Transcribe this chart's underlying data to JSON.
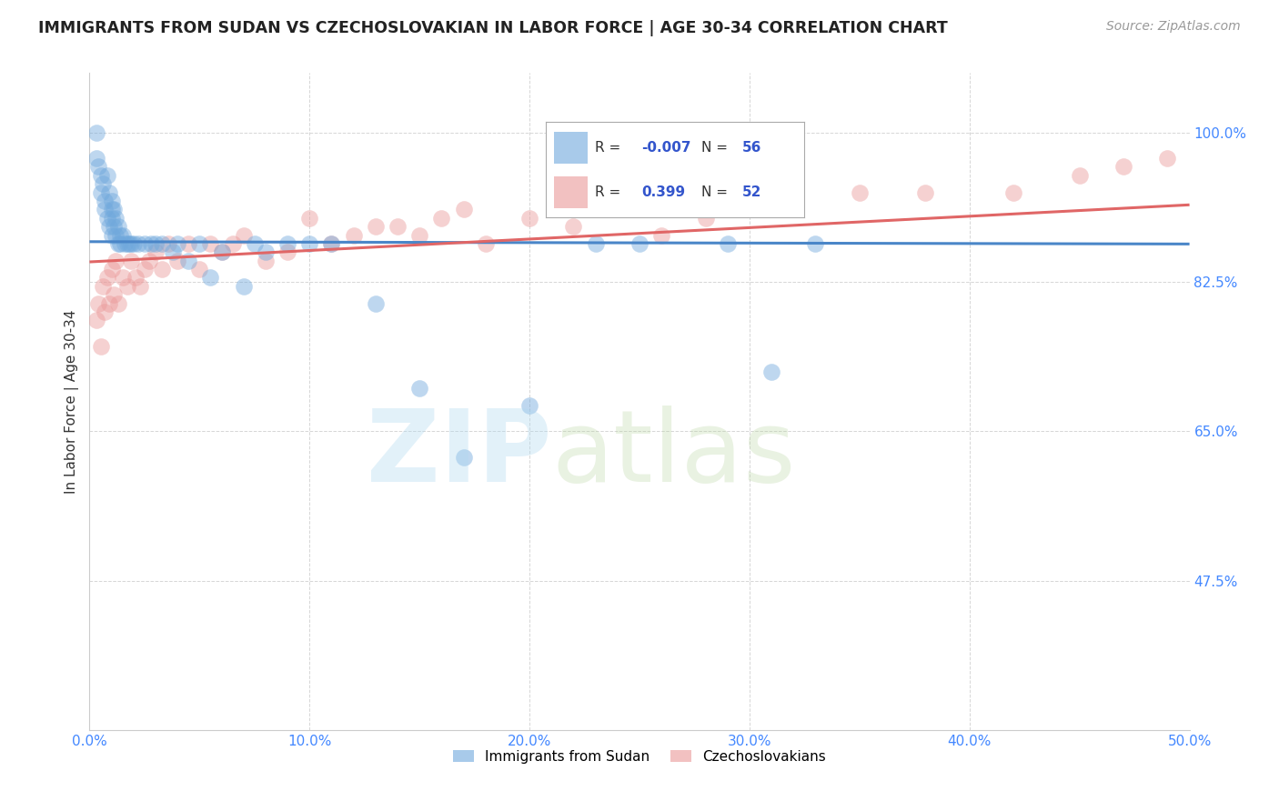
{
  "title": "IMMIGRANTS FROM SUDAN VS CZECHOSLOVAKIAN IN LABOR FORCE | AGE 30-34 CORRELATION CHART",
  "source": "Source: ZipAtlas.com",
  "ylabel": "In Labor Force | Age 30-34",
  "xlim": [
    0.0,
    0.5
  ],
  "ylim": [
    0.3,
    1.07
  ],
  "xticks": [
    0.0,
    0.1,
    0.2,
    0.3,
    0.4,
    0.5
  ],
  "xticklabels": [
    "0.0%",
    "10.0%",
    "20.0%",
    "30.0%",
    "40.0%",
    "50.0%"
  ],
  "yticks": [
    0.475,
    0.65,
    0.825,
    1.0
  ],
  "yticklabels": [
    "47.5%",
    "65.0%",
    "82.5%",
    "100.0%"
  ],
  "grid_color": "#cccccc",
  "legend_r_sudan": "-0.007",
  "legend_n_sudan": "56",
  "legend_r_czech": "0.399",
  "legend_n_czech": "52",
  "sudan_color": "#6fa8dc",
  "czech_color": "#ea9999",
  "sudan_line_color": "#4a86c8",
  "czech_line_color": "#e06666",
  "sudan_x": [
    0.003,
    0.003,
    0.004,
    0.005,
    0.005,
    0.006,
    0.007,
    0.007,
    0.008,
    0.008,
    0.009,
    0.009,
    0.01,
    0.01,
    0.01,
    0.01,
    0.011,
    0.011,
    0.012,
    0.012,
    0.013,
    0.013,
    0.014,
    0.014,
    0.015,
    0.016,
    0.017,
    0.018,
    0.019,
    0.02,
    0.022,
    0.025,
    0.028,
    0.03,
    0.033,
    0.038,
    0.04,
    0.045,
    0.05,
    0.055,
    0.06,
    0.07,
    0.075,
    0.08,
    0.09,
    0.1,
    0.11,
    0.13,
    0.15,
    0.17,
    0.2,
    0.23,
    0.25,
    0.29,
    0.31,
    0.33
  ],
  "sudan_y": [
    1.0,
    0.97,
    0.96,
    0.95,
    0.93,
    0.94,
    0.92,
    0.91,
    0.95,
    0.9,
    0.93,
    0.89,
    0.92,
    0.91,
    0.9,
    0.88,
    0.91,
    0.89,
    0.9,
    0.88,
    0.89,
    0.87,
    0.88,
    0.87,
    0.88,
    0.87,
    0.87,
    0.87,
    0.87,
    0.87,
    0.87,
    0.87,
    0.87,
    0.87,
    0.87,
    0.86,
    0.87,
    0.85,
    0.87,
    0.83,
    0.86,
    0.82,
    0.87,
    0.86,
    0.87,
    0.87,
    0.87,
    0.8,
    0.7,
    0.62,
    0.68,
    0.87,
    0.87,
    0.87,
    0.72,
    0.87
  ],
  "czech_x": [
    0.003,
    0.004,
    0.005,
    0.006,
    0.007,
    0.008,
    0.009,
    0.01,
    0.011,
    0.012,
    0.013,
    0.015,
    0.017,
    0.019,
    0.021,
    0.023,
    0.025,
    0.027,
    0.03,
    0.033,
    0.036,
    0.04,
    0.045,
    0.05,
    0.055,
    0.06,
    0.065,
    0.07,
    0.08,
    0.09,
    0.1,
    0.11,
    0.12,
    0.13,
    0.14,
    0.15,
    0.16,
    0.17,
    0.18,
    0.2,
    0.22,
    0.24,
    0.26,
    0.28,
    0.3,
    0.32,
    0.35,
    0.38,
    0.42,
    0.45,
    0.47,
    0.49
  ],
  "czech_y": [
    0.78,
    0.8,
    0.75,
    0.82,
    0.79,
    0.83,
    0.8,
    0.84,
    0.81,
    0.85,
    0.8,
    0.83,
    0.82,
    0.85,
    0.83,
    0.82,
    0.84,
    0.85,
    0.86,
    0.84,
    0.87,
    0.85,
    0.87,
    0.84,
    0.87,
    0.86,
    0.87,
    0.88,
    0.85,
    0.86,
    0.9,
    0.87,
    0.88,
    0.89,
    0.89,
    0.88,
    0.9,
    0.91,
    0.87,
    0.9,
    0.89,
    0.91,
    0.88,
    0.9,
    0.91,
    0.92,
    0.93,
    0.93,
    0.93,
    0.95,
    0.96,
    0.97
  ]
}
